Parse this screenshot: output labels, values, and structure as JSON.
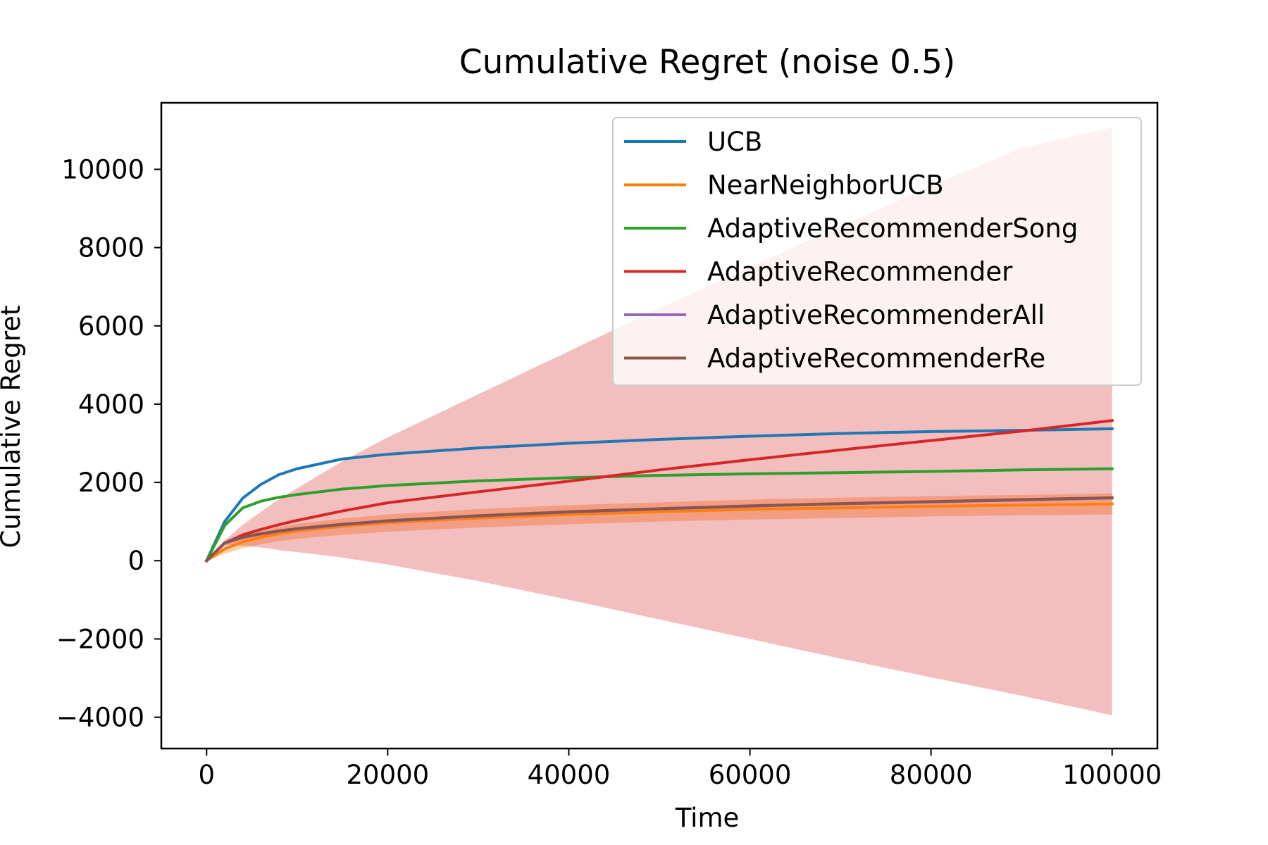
{
  "chart_data": {
    "type": "line",
    "title": "Cumulative Regret (noise 0.5)",
    "xlabel": "Time",
    "ylabel": "Cumulative Regret",
    "xlim": [
      -5000,
      105000
    ],
    "ylim": [
      -4800,
      11700
    ],
    "xticks": [
      0,
      20000,
      40000,
      60000,
      80000,
      100000
    ],
    "xtick_labels": [
      "0",
      "20000",
      "40000",
      "60000",
      "80000",
      "100000"
    ],
    "yticks": [
      -4000,
      -2000,
      0,
      2000,
      4000,
      6000,
      8000,
      10000
    ],
    "ytick_labels": [
      "−4000",
      "−2000",
      "0",
      "2000",
      "4000",
      "6000",
      "8000",
      "10000"
    ],
    "grid": false,
    "legend_position": "top-right",
    "series": [
      {
        "name": "UCB",
        "color": "#1f77b4",
        "x": [
          0,
          2000,
          4000,
          6000,
          8000,
          10000,
          15000,
          20000,
          30000,
          40000,
          50000,
          60000,
          70000,
          80000,
          90000,
          100000
        ],
        "y": [
          0,
          1000,
          1600,
          1950,
          2200,
          2350,
          2600,
          2720,
          2880,
          3000,
          3100,
          3180,
          3250,
          3300,
          3330,
          3370
        ]
      },
      {
        "name": "NearNeighborUCB",
        "color": "#ff7f0e",
        "x": [
          0,
          2000,
          4000,
          6000,
          8000,
          10000,
          15000,
          20000,
          30000,
          40000,
          50000,
          60000,
          70000,
          80000,
          90000,
          100000
        ],
        "y": [
          0,
          300,
          480,
          600,
          690,
          760,
          880,
          970,
          1090,
          1180,
          1250,
          1310,
          1350,
          1390,
          1420,
          1450
        ],
        "band_lower": [
          0,
          170,
          320,
          420,
          500,
          560,
          660,
          740,
          850,
          930,
          1000,
          1050,
          1090,
          1130,
          1160,
          1180
        ],
        "band_upper": [
          0,
          450,
          620,
          760,
          860,
          940,
          1080,
          1180,
          1320,
          1420,
          1490,
          1560,
          1610,
          1650,
          1680,
          1720
        ]
      },
      {
        "name": "AdaptiveRecommenderSong",
        "color": "#2ca02c",
        "x": [
          0,
          2000,
          4000,
          6000,
          8000,
          10000,
          15000,
          20000,
          30000,
          40000,
          50000,
          60000,
          70000,
          80000,
          90000,
          100000
        ],
        "y": [
          0,
          900,
          1350,
          1520,
          1620,
          1690,
          1830,
          1920,
          2040,
          2120,
          2180,
          2220,
          2250,
          2280,
          2320,
          2350
        ]
      },
      {
        "name": "AdaptiveRecommender",
        "color": "#d62728",
        "x": [
          0,
          2000,
          4000,
          6000,
          8000,
          10000,
          15000,
          20000,
          30000,
          40000,
          50000,
          60000,
          70000,
          80000,
          90000,
          100000
        ],
        "y": [
          0,
          450,
          660,
          800,
          920,
          1030,
          1270,
          1480,
          1760,
          2030,
          2320,
          2580,
          2830,
          3070,
          3310,
          3580
        ],
        "band_lower": [
          0,
          400,
          380,
          340,
          270,
          220,
          80,
          -100,
          -520,
          -1000,
          -1500,
          -2000,
          -2500,
          -2980,
          -3450,
          -3950
        ],
        "band_upper": [
          0,
          520,
          920,
          1250,
          1570,
          1850,
          2540,
          3150,
          4250,
          5350,
          6450,
          7500,
          8550,
          9570,
          10550,
          11070
        ]
      },
      {
        "name": "AdaptiveRecommenderAll",
        "color": "#9467bd",
        "x": [
          0,
          2000,
          4000,
          6000,
          8000,
          10000,
          15000,
          20000,
          30000,
          40000,
          50000,
          60000,
          70000,
          80000,
          90000,
          100000
        ],
        "y": [
          0,
          450,
          590,
          680,
          750,
          810,
          920,
          1010,
          1140,
          1240,
          1320,
          1390,
          1450,
          1500,
          1550,
          1600
        ]
      },
      {
        "name": "AdaptiveRecommenderRe",
        "color": "#8c564b",
        "x": [
          0,
          2000,
          4000,
          6000,
          8000,
          10000,
          15000,
          20000,
          30000,
          40000,
          50000,
          60000,
          70000,
          80000,
          90000,
          100000
        ],
        "y": [
          0,
          460,
          600,
          690,
          760,
          820,
          930,
          1020,
          1150,
          1250,
          1330,
          1400,
          1460,
          1510,
          1560,
          1610
        ]
      }
    ]
  }
}
